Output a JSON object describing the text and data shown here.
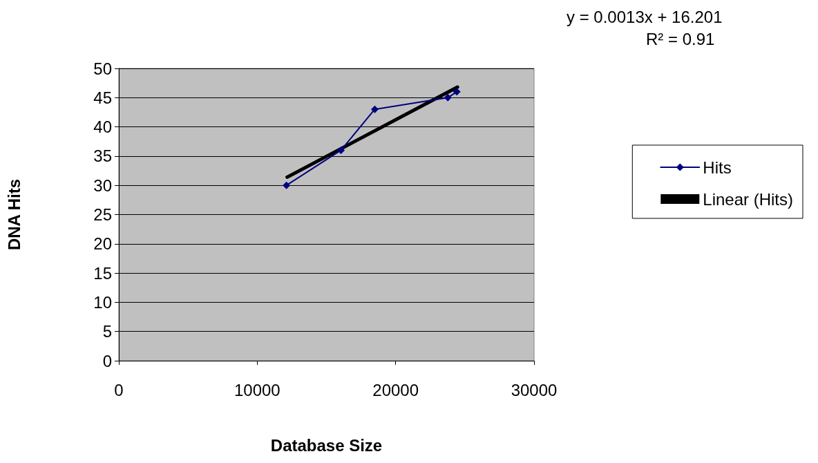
{
  "chart_data": {
    "type": "line",
    "xlabel": "Database Size",
    "ylabel": "DNA Hits",
    "annotations": [
      "y = 0.0013x + 16.201",
      "R² = 0.91"
    ],
    "xlim": [
      0,
      30000
    ],
    "xticks": [
      0,
      10000,
      20000,
      30000
    ],
    "ylim": [
      0,
      50
    ],
    "yticks": [
      0,
      5,
      10,
      15,
      20,
      25,
      30,
      35,
      40,
      45,
      50
    ],
    "grid": "y",
    "legend": "right",
    "series": [
      {
        "name": "Hits",
        "color": "#000080",
        "marker": "diamond",
        "x": [
          12110,
          16050,
          18490,
          23770,
          24420
        ],
        "values": [
          30,
          36,
          43,
          45,
          46
        ]
      },
      {
        "name": "Linear (Hits)",
        "color": "#000000",
        "marker": "none",
        "x": [
          12160,
          24470
        ],
        "values": [
          31.4,
          46.8
        ]
      }
    ]
  }
}
